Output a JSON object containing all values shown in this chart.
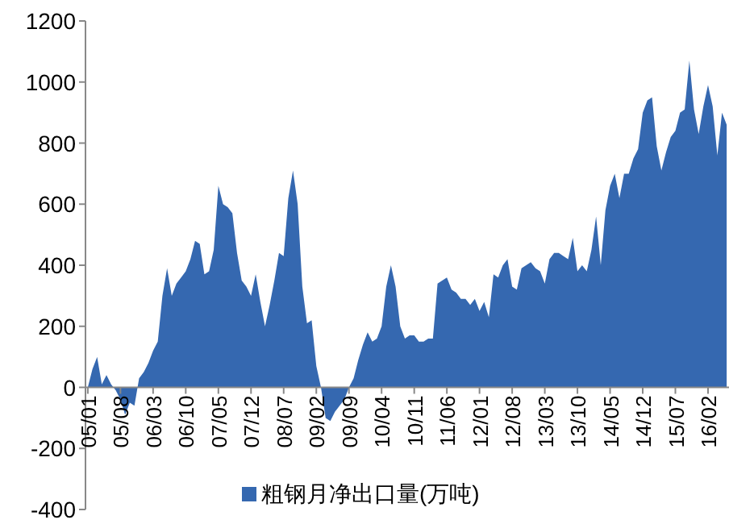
{
  "chart_data": {
    "type": "area",
    "categories": [
      "05/01",
      null,
      null,
      null,
      null,
      null,
      null,
      "05/08",
      null,
      null,
      null,
      null,
      null,
      null,
      "06/03",
      null,
      null,
      null,
      null,
      null,
      null,
      "06/10",
      null,
      null,
      null,
      null,
      null,
      null,
      "07/05",
      null,
      null,
      null,
      null,
      null,
      null,
      "07/12",
      null,
      null,
      null,
      null,
      null,
      null,
      "08/07",
      null,
      null,
      null,
      null,
      null,
      null,
      "09/02",
      null,
      null,
      null,
      null,
      null,
      null,
      "09/09",
      null,
      null,
      null,
      null,
      null,
      null,
      "10/04",
      null,
      null,
      null,
      null,
      null,
      null,
      "10/11",
      null,
      null,
      null,
      null,
      null,
      null,
      "11/06",
      null,
      null,
      null,
      null,
      null,
      null,
      "12/01",
      null,
      null,
      null,
      null,
      null,
      null,
      "12/08",
      null,
      null,
      null,
      null,
      null,
      null,
      "13/03",
      null,
      null,
      null,
      null,
      null,
      null,
      "13/10",
      null,
      null,
      null,
      null,
      null,
      null,
      "14/05",
      null,
      null,
      null,
      null,
      null,
      null,
      "14/12",
      null,
      null,
      null,
      null,
      null,
      null,
      "15/07",
      null,
      null,
      null,
      null,
      null,
      null,
      "16/02",
      null,
      null,
      null,
      null
    ],
    "series": [
      {
        "name": "粗钢月净出口量(万吨)",
        "color": "#3568b0",
        "values": [
          0,
          60,
          100,
          10,
          40,
          10,
          -10,
          -40,
          -90,
          -50,
          -60,
          30,
          50,
          80,
          120,
          150,
          300,
          390,
          300,
          340,
          360,
          380,
          420,
          480,
          470,
          370,
          380,
          450,
          660,
          600,
          590,
          570,
          440,
          350,
          330,
          300,
          370,
          280,
          200,
          270,
          350,
          440,
          430,
          620,
          710,
          600,
          330,
          210,
          220,
          70,
          0,
          -100,
          -110,
          -80,
          -60,
          -40,
          0,
          30,
          90,
          140,
          180,
          150,
          160,
          200,
          330,
          400,
          330,
          200,
          160,
          170,
          170,
          150,
          150,
          160,
          160,
          340,
          350,
          360,
          320,
          310,
          290,
          290,
          270,
          290,
          250,
          280,
          230,
          370,
          360,
          400,
          420,
          330,
          320,
          390,
          400,
          410,
          390,
          380,
          340,
          420,
          440,
          440,
          430,
          420,
          490,
          380,
          400,
          380,
          450,
          560,
          400,
          580,
          660,
          700,
          620,
          700,
          700,
          750,
          780,
          900,
          940,
          950,
          790,
          710,
          770,
          820,
          840,
          900,
          910,
          1070,
          910,
          830,
          920,
          990,
          920,
          760,
          900,
          860
        ]
      }
    ],
    "ylim": [
      -400,
      1200
    ],
    "yticks": [
      -400,
      -200,
      0,
      200,
      400,
      600,
      800,
      1000,
      1200
    ],
    "legend": "bottom"
  }
}
